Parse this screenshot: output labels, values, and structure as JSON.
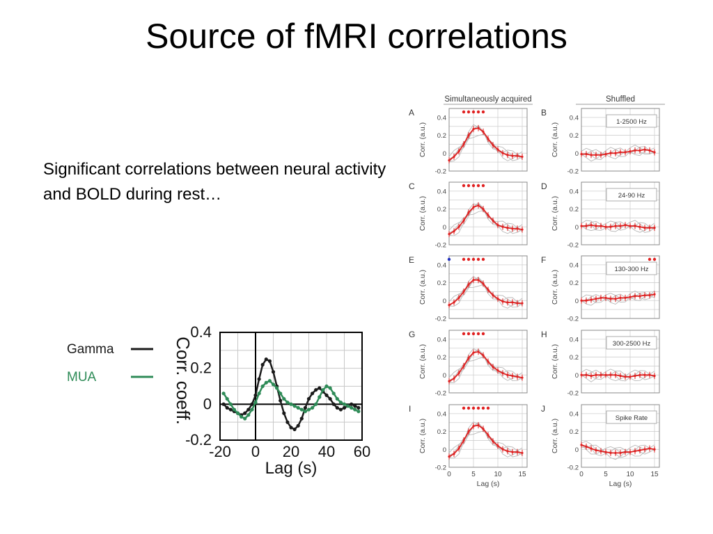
{
  "slide": {
    "title": "Source of fMRI correlations",
    "body": "Significant correlations between neural activity and BOLD during rest…"
  },
  "chart_data": [
    {
      "type": "line",
      "xlabel": "Lag (s)",
      "ylabel": "Corr. coeff.",
      "xlim": [
        -20,
        60
      ],
      "ylim": [
        -0.2,
        0.4
      ],
      "xticks": [
        "-20",
        "0",
        "20",
        "40",
        "60"
      ],
      "yticks": [
        "0.4",
        "0.2",
        "0",
        "-0.2"
      ],
      "grid": true,
      "legend_position": "top-left",
      "colors": {
        "Gamma": "#1a1a1a",
        "MUA": "#2e8b57"
      },
      "series": [
        {
          "name": "Gamma",
          "x": [
            -18,
            -16,
            -14,
            -12,
            -10,
            -8,
            -6,
            -4,
            -2,
            0,
            2,
            4,
            6,
            8,
            10,
            12,
            14,
            16,
            18,
            20,
            22,
            24,
            26,
            28,
            30,
            32,
            34,
            36,
            38,
            40,
            42,
            44,
            46,
            48,
            50,
            52,
            54,
            56,
            58
          ],
          "y": [
            0.0,
            -0.02,
            -0.03,
            -0.04,
            -0.05,
            -0.06,
            -0.05,
            -0.03,
            0.0,
            0.05,
            0.14,
            0.22,
            0.25,
            0.24,
            0.18,
            0.1,
            0.02,
            -0.05,
            -0.1,
            -0.13,
            -0.14,
            -0.12,
            -0.08,
            -0.02,
            0.03,
            0.06,
            0.08,
            0.09,
            0.07,
            0.05,
            0.03,
            0.0,
            -0.02,
            -0.03,
            -0.02,
            -0.01,
            0.0,
            -0.01,
            -0.02
          ]
        },
        {
          "name": "MUA",
          "x": [
            -18,
            -16,
            -14,
            -12,
            -10,
            -8,
            -6,
            -4,
            -2,
            0,
            2,
            4,
            6,
            8,
            10,
            12,
            14,
            16,
            18,
            20,
            22,
            24,
            26,
            28,
            30,
            32,
            34,
            36,
            38,
            40,
            42,
            44,
            46,
            48,
            50,
            52,
            54,
            56,
            58
          ],
          "y": [
            0.06,
            0.03,
            0.0,
            -0.03,
            -0.05,
            -0.07,
            -0.08,
            -0.06,
            -0.03,
            0.01,
            0.06,
            0.1,
            0.12,
            0.13,
            0.11,
            0.09,
            0.06,
            0.03,
            0.01,
            0.0,
            -0.01,
            -0.02,
            -0.03,
            -0.04,
            -0.03,
            -0.02,
            0.0,
            0.04,
            0.08,
            0.1,
            0.09,
            0.06,
            0.03,
            0.01,
            0.0,
            -0.01,
            -0.02,
            -0.03,
            -0.04
          ]
        }
      ]
    },
    {
      "type": "line",
      "columns": [
        "Simultaneously acquired",
        "Shuffled"
      ],
      "xlabel": "Lag (s)",
      "ylabel": "Corr. (a.u.)",
      "xlim": [
        0,
        16
      ],
      "ylim": [
        -0.2,
        0.5
      ],
      "xticks": [
        "0",
        "5",
        "10",
        "15"
      ],
      "yticks": [
        "0.4",
        "0.2",
        "0",
        "-0.2"
      ],
      "grid": true,
      "colors": {
        "mean": "#e02020",
        "individual": "#b8b8b8",
        "significance": "#e02020",
        "blue_marker": "#2030c0"
      },
      "panels": [
        {
          "letter": "A",
          "label": "",
          "x": [
            0,
            1,
            2,
            3,
            4,
            5,
            6,
            7,
            8,
            9,
            10,
            11,
            12,
            13,
            14,
            15
          ],
          "mean": [
            -0.08,
            -0.04,
            0.02,
            0.1,
            0.2,
            0.27,
            0.28,
            0.24,
            0.16,
            0.09,
            0.04,
            0.0,
            -0.02,
            -0.03,
            -0.03,
            -0.04
          ],
          "sig": [
            3,
            4,
            5,
            6,
            7
          ],
          "blue": []
        },
        {
          "letter": "B",
          "label": "1-2500 Hz",
          "x": [
            0,
            1,
            2,
            3,
            4,
            5,
            6,
            7,
            8,
            9,
            10,
            11,
            12,
            13,
            14,
            15
          ],
          "mean": [
            -0.01,
            -0.01,
            -0.02,
            -0.02,
            -0.02,
            -0.01,
            0.0,
            0.0,
            0.01,
            0.01,
            0.02,
            0.03,
            0.03,
            0.04,
            0.03,
            0.01
          ],
          "sig": [],
          "blue": []
        },
        {
          "letter": "C",
          "label": "",
          "x": [
            0,
            1,
            2,
            3,
            4,
            5,
            6,
            7,
            8,
            9,
            10,
            11,
            12,
            13,
            14,
            15
          ],
          "mean": [
            -0.08,
            -0.05,
            0.0,
            0.07,
            0.16,
            0.22,
            0.24,
            0.2,
            0.13,
            0.07,
            0.02,
            0.0,
            -0.01,
            -0.02,
            -0.02,
            -0.03
          ],
          "sig": [
            3,
            4,
            5,
            6,
            7
          ],
          "blue": []
        },
        {
          "letter": "D",
          "label": "24-90 Hz",
          "x": [
            0,
            1,
            2,
            3,
            4,
            5,
            6,
            7,
            8,
            9,
            10,
            11,
            12,
            13,
            14,
            15
          ],
          "mean": [
            0.01,
            0.01,
            0.02,
            0.01,
            0.01,
            0.0,
            0.0,
            0.01,
            0.01,
            0.02,
            0.01,
            0.01,
            0.0,
            -0.01,
            -0.01,
            -0.01
          ],
          "sig": [],
          "blue": []
        },
        {
          "letter": "E",
          "label": "",
          "x": [
            0,
            1,
            2,
            3,
            4,
            5,
            6,
            7,
            8,
            9,
            10,
            11,
            12,
            13,
            14,
            15
          ],
          "mean": [
            -0.05,
            -0.02,
            0.03,
            0.1,
            0.18,
            0.23,
            0.23,
            0.19,
            0.12,
            0.06,
            0.02,
            -0.01,
            -0.02,
            -0.02,
            -0.03,
            -0.03
          ],
          "sig": [
            3,
            4,
            5,
            6,
            7
          ],
          "blue": [
            0
          ]
        },
        {
          "letter": "F",
          "label": "130-300 Hz",
          "x": [
            0,
            1,
            2,
            3,
            4,
            5,
            6,
            7,
            8,
            9,
            10,
            11,
            12,
            13,
            14,
            15
          ],
          "mean": [
            0.0,
            0.0,
            0.01,
            0.02,
            0.03,
            0.03,
            0.02,
            0.02,
            0.03,
            0.03,
            0.04,
            0.05,
            0.05,
            0.06,
            0.06,
            0.07
          ],
          "sig": [
            14,
            15
          ],
          "blue": []
        },
        {
          "letter": "G",
          "label": "",
          "x": [
            0,
            1,
            2,
            3,
            4,
            5,
            6,
            7,
            8,
            9,
            10,
            11,
            12,
            13,
            14,
            15
          ],
          "mean": [
            -0.07,
            -0.04,
            0.02,
            0.1,
            0.19,
            0.25,
            0.26,
            0.22,
            0.15,
            0.09,
            0.05,
            0.02,
            0.0,
            -0.01,
            -0.02,
            -0.03
          ],
          "sig": [
            3,
            4,
            5,
            6,
            7
          ],
          "blue": []
        },
        {
          "letter": "H",
          "label": "300-2500 Hz",
          "x": [
            0,
            1,
            2,
            3,
            4,
            5,
            6,
            7,
            8,
            9,
            10,
            11,
            12,
            13,
            14,
            15
          ],
          "mean": [
            0.0,
            0.0,
            -0.01,
            0.0,
            0.0,
            0.0,
            0.0,
            0.0,
            -0.01,
            -0.02,
            -0.02,
            -0.01,
            0.0,
            0.0,
            0.0,
            -0.01
          ],
          "sig": [],
          "blue": []
        },
        {
          "letter": "I",
          "label": "",
          "x": [
            0,
            1,
            2,
            3,
            4,
            5,
            6,
            7,
            8,
            9,
            10,
            11,
            12,
            13,
            14,
            15
          ],
          "mean": [
            -0.08,
            -0.05,
            0.01,
            0.1,
            0.2,
            0.26,
            0.27,
            0.23,
            0.16,
            0.09,
            0.04,
            0.0,
            -0.02,
            -0.03,
            -0.03,
            -0.04
          ],
          "sig": [
            3,
            4,
            5,
            6,
            7,
            8
          ],
          "blue": []
        },
        {
          "letter": "J",
          "label": "Spike Rate",
          "x": [
            0,
            1,
            2,
            3,
            4,
            5,
            6,
            7,
            8,
            9,
            10,
            11,
            12,
            13,
            14,
            15
          ],
          "mean": [
            0.05,
            0.03,
            0.01,
            -0.01,
            -0.02,
            -0.03,
            -0.04,
            -0.04,
            -0.04,
            -0.03,
            -0.03,
            -0.02,
            -0.01,
            0.0,
            0.01,
            0.0
          ],
          "sig": [],
          "blue": []
        }
      ]
    }
  ]
}
